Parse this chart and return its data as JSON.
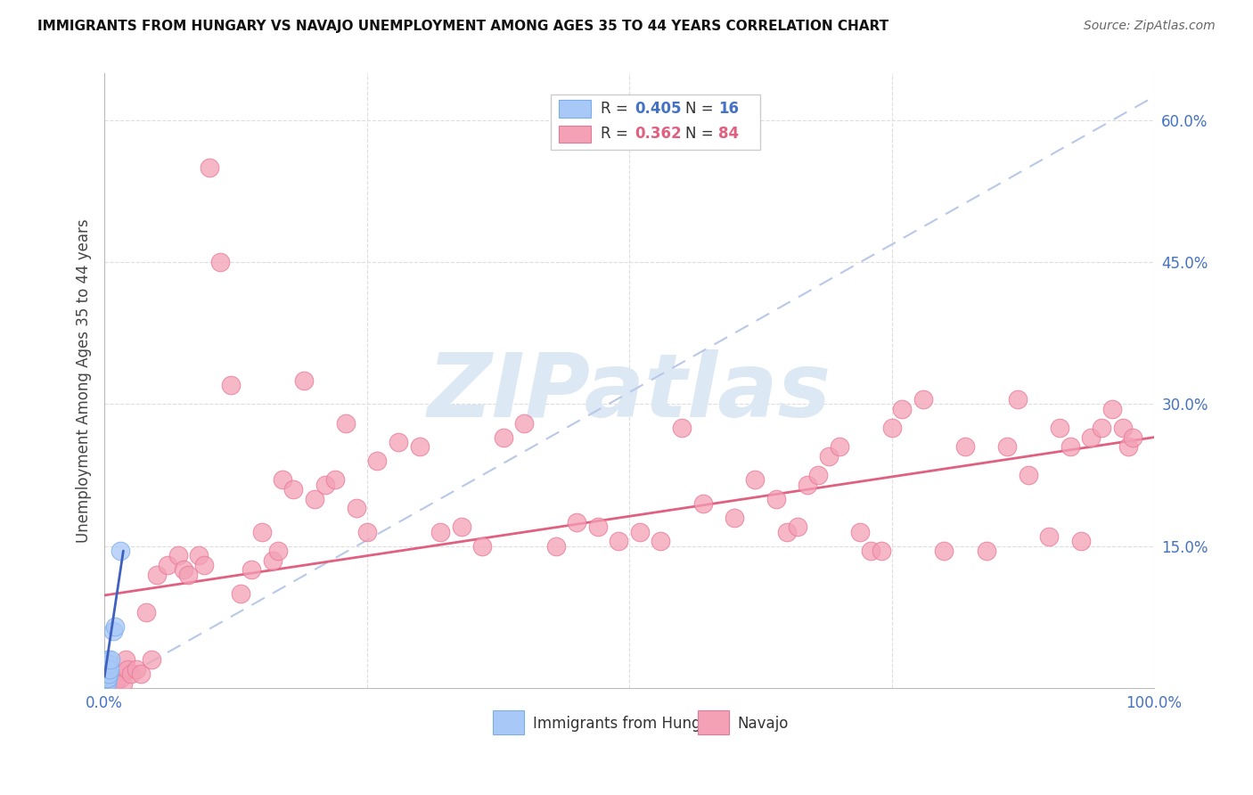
{
  "title": "IMMIGRANTS FROM HUNGARY VS NAVAJO UNEMPLOYMENT AMONG AGES 35 TO 44 YEARS CORRELATION CHART",
  "source": "Source: ZipAtlas.com",
  "ylabel": "Unemployment Among Ages 35 to 44 years",
  "xlim": [
    0.0,
    1.0
  ],
  "ylim": [
    0.0,
    0.65
  ],
  "xtick_positions": [
    0.0,
    0.25,
    0.5,
    0.75,
    1.0
  ],
  "xtick_labels": [
    "0.0%",
    "",
    "",
    "",
    "100.0%"
  ],
  "ytick_positions": [
    0.15,
    0.3,
    0.45,
    0.6
  ],
  "ytick_labels": [
    "15.0%",
    "30.0%",
    "45.0%",
    "60.0%"
  ],
  "hungary_color": "#a8c8f8",
  "navajo_color": "#f4a0b5",
  "hungary_edge_color": "#7aaee8",
  "navajo_edge_color": "#e87898",
  "hungary_line_color": "#4060c0",
  "navajo_line_color": "#e06080",
  "dashed_line_color": "#b8c8e8",
  "watermark_text": "ZIPatlas",
  "watermark_color": "#dce8f4",
  "background_color": "#ffffff",
  "grid_color": "#dddddd",
  "title_color": "#111111",
  "source_color": "#666666",
  "axis_label_color": "#444444",
  "tick_color": "#4472c4",
  "legend_r1_color": "#4472c4",
  "legend_n1_color": "#4472c4",
  "legend_r2_color": "#e06080",
  "legend_n2_color": "#e06080",
  "hungary_points": [
    [
      0.001,
      0.005
    ],
    [
      0.001,
      0.01
    ],
    [
      0.001,
      0.015
    ],
    [
      0.002,
      0.005
    ],
    [
      0.002,
      0.01
    ],
    [
      0.002,
      0.02
    ],
    [
      0.003,
      0.01
    ],
    [
      0.003,
      0.02
    ],
    [
      0.003,
      0.03
    ],
    [
      0.004,
      0.015
    ],
    [
      0.004,
      0.025
    ],
    [
      0.005,
      0.02
    ],
    [
      0.006,
      0.03
    ],
    [
      0.008,
      0.06
    ],
    [
      0.01,
      0.065
    ],
    [
      0.015,
      0.145
    ]
  ],
  "navajo_points": [
    [
      0.005,
      0.005
    ],
    [
      0.008,
      0.01
    ],
    [
      0.01,
      0.005
    ],
    [
      0.012,
      0.008
    ],
    [
      0.015,
      0.01
    ],
    [
      0.018,
      0.005
    ],
    [
      0.02,
      0.03
    ],
    [
      0.022,
      0.02
    ],
    [
      0.025,
      0.015
    ],
    [
      0.03,
      0.02
    ],
    [
      0.035,
      0.015
    ],
    [
      0.04,
      0.08
    ],
    [
      0.045,
      0.03
    ],
    [
      0.05,
      0.12
    ],
    [
      0.06,
      0.13
    ],
    [
      0.07,
      0.14
    ],
    [
      0.075,
      0.125
    ],
    [
      0.08,
      0.12
    ],
    [
      0.09,
      0.14
    ],
    [
      0.095,
      0.13
    ],
    [
      0.1,
      0.55
    ],
    [
      0.11,
      0.45
    ],
    [
      0.12,
      0.32
    ],
    [
      0.13,
      0.1
    ],
    [
      0.14,
      0.125
    ],
    [
      0.15,
      0.165
    ],
    [
      0.16,
      0.135
    ],
    [
      0.165,
      0.145
    ],
    [
      0.17,
      0.22
    ],
    [
      0.18,
      0.21
    ],
    [
      0.19,
      0.325
    ],
    [
      0.2,
      0.2
    ],
    [
      0.21,
      0.215
    ],
    [
      0.22,
      0.22
    ],
    [
      0.23,
      0.28
    ],
    [
      0.24,
      0.19
    ],
    [
      0.25,
      0.165
    ],
    [
      0.26,
      0.24
    ],
    [
      0.28,
      0.26
    ],
    [
      0.3,
      0.255
    ],
    [
      0.32,
      0.165
    ],
    [
      0.34,
      0.17
    ],
    [
      0.36,
      0.15
    ],
    [
      0.38,
      0.265
    ],
    [
      0.4,
      0.28
    ],
    [
      0.43,
      0.15
    ],
    [
      0.45,
      0.175
    ],
    [
      0.47,
      0.17
    ],
    [
      0.49,
      0.155
    ],
    [
      0.51,
      0.165
    ],
    [
      0.53,
      0.155
    ],
    [
      0.55,
      0.275
    ],
    [
      0.57,
      0.195
    ],
    [
      0.6,
      0.18
    ],
    [
      0.62,
      0.22
    ],
    [
      0.64,
      0.2
    ],
    [
      0.65,
      0.165
    ],
    [
      0.66,
      0.17
    ],
    [
      0.67,
      0.215
    ],
    [
      0.68,
      0.225
    ],
    [
      0.69,
      0.245
    ],
    [
      0.7,
      0.255
    ],
    [
      0.72,
      0.165
    ],
    [
      0.73,
      0.145
    ],
    [
      0.74,
      0.145
    ],
    [
      0.75,
      0.275
    ],
    [
      0.76,
      0.295
    ],
    [
      0.78,
      0.305
    ],
    [
      0.8,
      0.145
    ],
    [
      0.82,
      0.255
    ],
    [
      0.84,
      0.145
    ],
    [
      0.86,
      0.255
    ],
    [
      0.87,
      0.305
    ],
    [
      0.88,
      0.225
    ],
    [
      0.9,
      0.16
    ],
    [
      0.91,
      0.275
    ],
    [
      0.92,
      0.255
    ],
    [
      0.93,
      0.155
    ],
    [
      0.94,
      0.265
    ],
    [
      0.95,
      0.275
    ],
    [
      0.96,
      0.295
    ],
    [
      0.97,
      0.275
    ],
    [
      0.975,
      0.255
    ],
    [
      0.98,
      0.265
    ]
  ],
  "dashed_line_x": [
    0.0,
    1.0
  ],
  "dashed_line_y": [
    0.0,
    0.625
  ],
  "navajo_line_x": [
    0.0,
    1.0
  ],
  "navajo_line_y": [
    0.098,
    0.265
  ],
  "hungary_line_x": [
    0.0,
    0.018
  ],
  "hungary_line_y": [
    0.012,
    0.145
  ]
}
